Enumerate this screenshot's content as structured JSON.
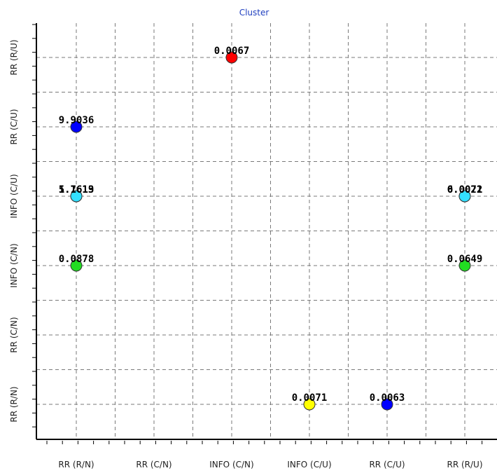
{
  "chart_data": {
    "type": "scatter",
    "title": "Cluster",
    "categories_x": [
      "RR (R/N)",
      "RR (C/N)",
      "INFO (C/N)",
      "INFO (C/U)",
      "RR (C/U)",
      "RR (R/U)"
    ],
    "categories_y": [
      "RR (R/N)",
      "RR (C/N)",
      "INFO (C/N)",
      "INFO (C/U)",
      "RR (C/U)",
      "RR (R/U)"
    ],
    "grid": true,
    "points": [
      {
        "x": "INFO (C/N)",
        "y": "RR (R/U)",
        "label": "0.0067",
        "color": "#ff0000"
      },
      {
        "x": "RR (R/N)",
        "y": "RR (C/U)",
        "label": "9.9036",
        "color": "#0000ff"
      },
      {
        "x": "RR (R/N)",
        "y": "INFO (C/U)",
        "label": "5.7619",
        "color": "#33e0ff"
      },
      {
        "x": "RR (R/N)",
        "y": "INFO (C/U)",
        "label": "1.1613",
        "color": "#33e0ff"
      },
      {
        "x": "RR (R/U)",
        "y": "INFO (C/U)",
        "label": "0.0022",
        "color": "#33e0ff"
      },
      {
        "x": "RR (R/U)",
        "y": "INFO (C/U)",
        "label": "6.0071",
        "color": "#33e0ff"
      },
      {
        "x": "RR (R/N)",
        "y": "INFO (C/N)",
        "label": "0.0878",
        "color": "#22dd22"
      },
      {
        "x": "RR (R/U)",
        "y": "INFO (C/N)",
        "label": "0.0649",
        "color": "#22dd22"
      },
      {
        "x": "INFO (C/U)",
        "y": "RR (R/N)",
        "label": "0.0071",
        "color": "#ffff00"
      },
      {
        "x": "RR (C/U)",
        "y": "RR (R/N)",
        "label": "0.0063",
        "color": "#0000ff"
      }
    ]
  }
}
